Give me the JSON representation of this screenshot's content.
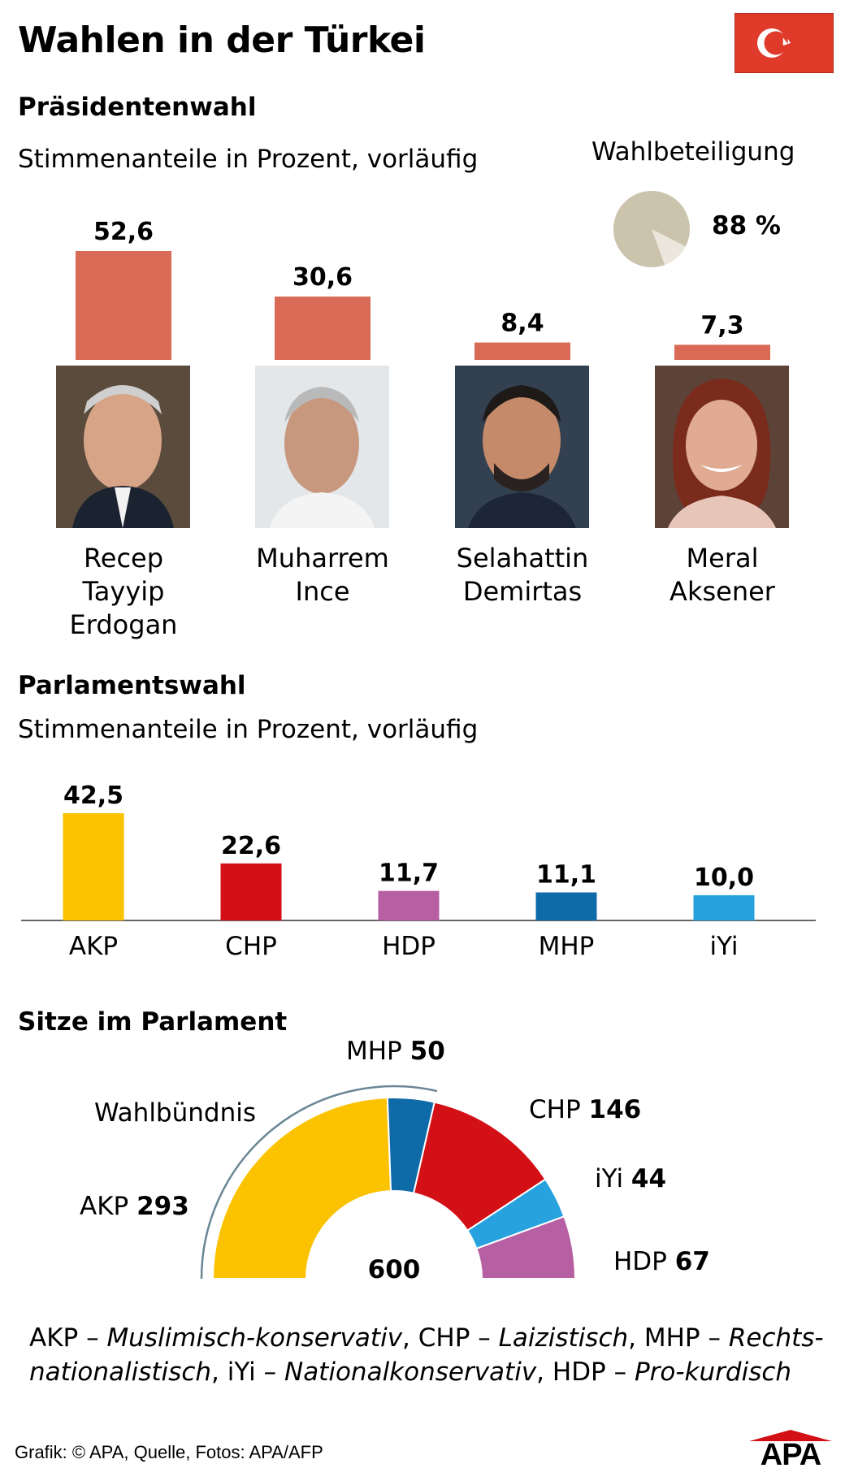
{
  "title": "Wahlen in der Türkei",
  "flag": {
    "red": "#e03a2b",
    "icon": "crescent-star-icon"
  },
  "president": {
    "heading": "Präsidentenwahl",
    "subtitle": "Stimmenanteile in Prozent, vorläufig",
    "turnout_label": "Wahlbeteiligung",
    "turnout_value": "88 %",
    "turnout_fraction": 0.88,
    "candidates": [
      {
        "name_lines": [
          "Recep",
          "Tayyip",
          "Erdogan"
        ],
        "value_label": "52,6"
      },
      {
        "name_lines": [
          "Muharrem",
          "Ince"
        ],
        "value_label": "30,6"
      },
      {
        "name_lines": [
          "Selahattin",
          "Demirtas"
        ],
        "value_label": "8,4"
      },
      {
        "name_lines": [
          "Meral",
          "Aksener"
        ],
        "value_label": "7,3"
      }
    ]
  },
  "parliament": {
    "heading": "Parlamentswahl",
    "subtitle": "Stimmenanteile in Prozent, vorläufig",
    "parties": [
      {
        "name": "AKP",
        "value_label": "42,5"
      },
      {
        "name": "CHP",
        "value_label": "22,6"
      },
      {
        "name": "HDP",
        "value_label": "11,7"
      },
      {
        "name": "MHP",
        "value_label": "11,1"
      },
      {
        "name": "iYi",
        "value_label": "10,0"
      }
    ]
  },
  "seats": {
    "heading": "Sitze im Parlament",
    "total": "600",
    "alliance_label": "Wahlbündnis",
    "parties": [
      {
        "name": "AKP",
        "seats": "293"
      },
      {
        "name": "MHP",
        "seats": "50"
      },
      {
        "name": "CHP",
        "seats": "146"
      },
      {
        "name": "iYi",
        "seats": "44"
      },
      {
        "name": "HDP",
        "seats": "67"
      }
    ]
  },
  "legend": [
    {
      "party": "AKP – ",
      "desc": "Muslimisch-konservativ"
    },
    {
      "party": ", CHP – ",
      "desc": "Laizistisch"
    },
    {
      "party": ", MHP – ",
      "desc": "Rechts-"
    },
    {
      "desc": "nationalistisch"
    },
    {
      "party": ", iYi – ",
      "desc": "Nationalkonservativ"
    },
    {
      "party": ", HDP – ",
      "desc": "Pro-kurdisch"
    }
  ],
  "footer": {
    "credit": "Grafik: © APA, Quelle, Fotos: APA/AFP",
    "logo": "APA"
  },
  "colors": {
    "president_bar": "#d96a55",
    "turnout_pie": "#ccc3ad",
    "turnout_pie_rest": "#ece7dc",
    "AKP": "#fbc200",
    "CHP": "#d21016",
    "HDP": "#b75fa3",
    "MHP": "#0f6aa8",
    "iYi": "#27a2de",
    "axis": "#333333",
    "alliance_arc": "#6b8796"
  },
  "chart_data": [
    {
      "type": "bar",
      "title": "Präsidentenwahl",
      "subtitle": "Stimmenanteile in Prozent, vorläufig",
      "categories": [
        "Recep Tayyip Erdogan",
        "Muharrem Ince",
        "Selahattin Demirtas",
        "Meral Aksener"
      ],
      "values": [
        52.6,
        30.6,
        8.4,
        7.3
      ]
    },
    {
      "type": "pie",
      "title": "Wahlbeteiligung",
      "categories": [
        "Wahlbeteiligung"
      ],
      "values": [
        88
      ]
    },
    {
      "type": "bar",
      "title": "Parlamentswahl",
      "subtitle": "Stimmenanteile in Prozent, vorläufig",
      "categories": [
        "AKP",
        "CHP",
        "HDP",
        "MHP",
        "iYi"
      ],
      "values": [
        42.5,
        22.6,
        11.7,
        11.1,
        10.0
      ]
    },
    {
      "type": "pie",
      "title": "Sitze im Parlament",
      "categories": [
        "AKP",
        "MHP",
        "CHP",
        "iYi",
        "HDP"
      ],
      "values": [
        293,
        50,
        146,
        44,
        67
      ],
      "total": 600
    }
  ]
}
